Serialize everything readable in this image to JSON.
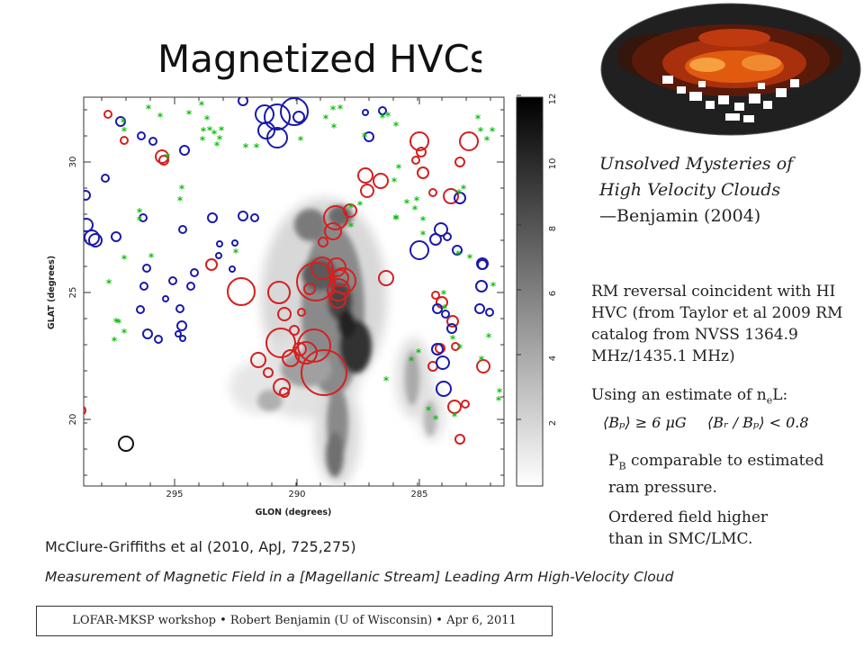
{
  "slide": {
    "title": "Magnetized HVCs?",
    "quote": {
      "line1": "Unsolved Mysteries of",
      "line2": "High Velocity Clouds",
      "line3": "—Benjamin (2004)"
    },
    "rm_text": "RM reversal coincident with HI HVC (from Taylor et al 2009 RM catalog from NVSS 1364.9 MHz/1435.1 MHz)",
    "ne_prefix": "Using an estimate of n",
    "ne_sub": "e",
    "ne_suffix": "L:",
    "formula": {
      "part1": "⟨Bₚ⟩ ≥ 6 μG",
      "part2": "⟨Bᵣ / Bₚ⟩ < 0.8"
    },
    "pb_prefix": "P",
    "pb_sub": "B",
    "pb_suffix": " comparable to estimated ram pressure.",
    "ordered_text": "Ordered field higher than in SMC/LMC.",
    "citation": "McClure-Griffiths et al (2010, ApJ, 725,275)",
    "paper_title": "Measurement of Magnetic Field in a [Magellanic Stream] Leading Arm High-Velocity Cloud",
    "footer": "LOFAR-MKSP workshop • Robert Benjamin (U of Wisconsin) • Apr 6, 2011"
  },
  "figure": {
    "xlabel": "GLON (degrees)",
    "ylabel": "GLAT (degrees)",
    "x_ticks": [
      "295",
      "290",
      "285"
    ],
    "y_ticks": [
      "30",
      "25",
      "20"
    ],
    "colorbar_ticks": [
      "2",
      "4",
      "6",
      "8",
      "10",
      "12"
    ],
    "colors": {
      "positive_rm": "#d42020",
      "negative_rm": "#1a1aaa",
      "small_rm": "#10c010",
      "reference": "#111111"
    }
  }
}
